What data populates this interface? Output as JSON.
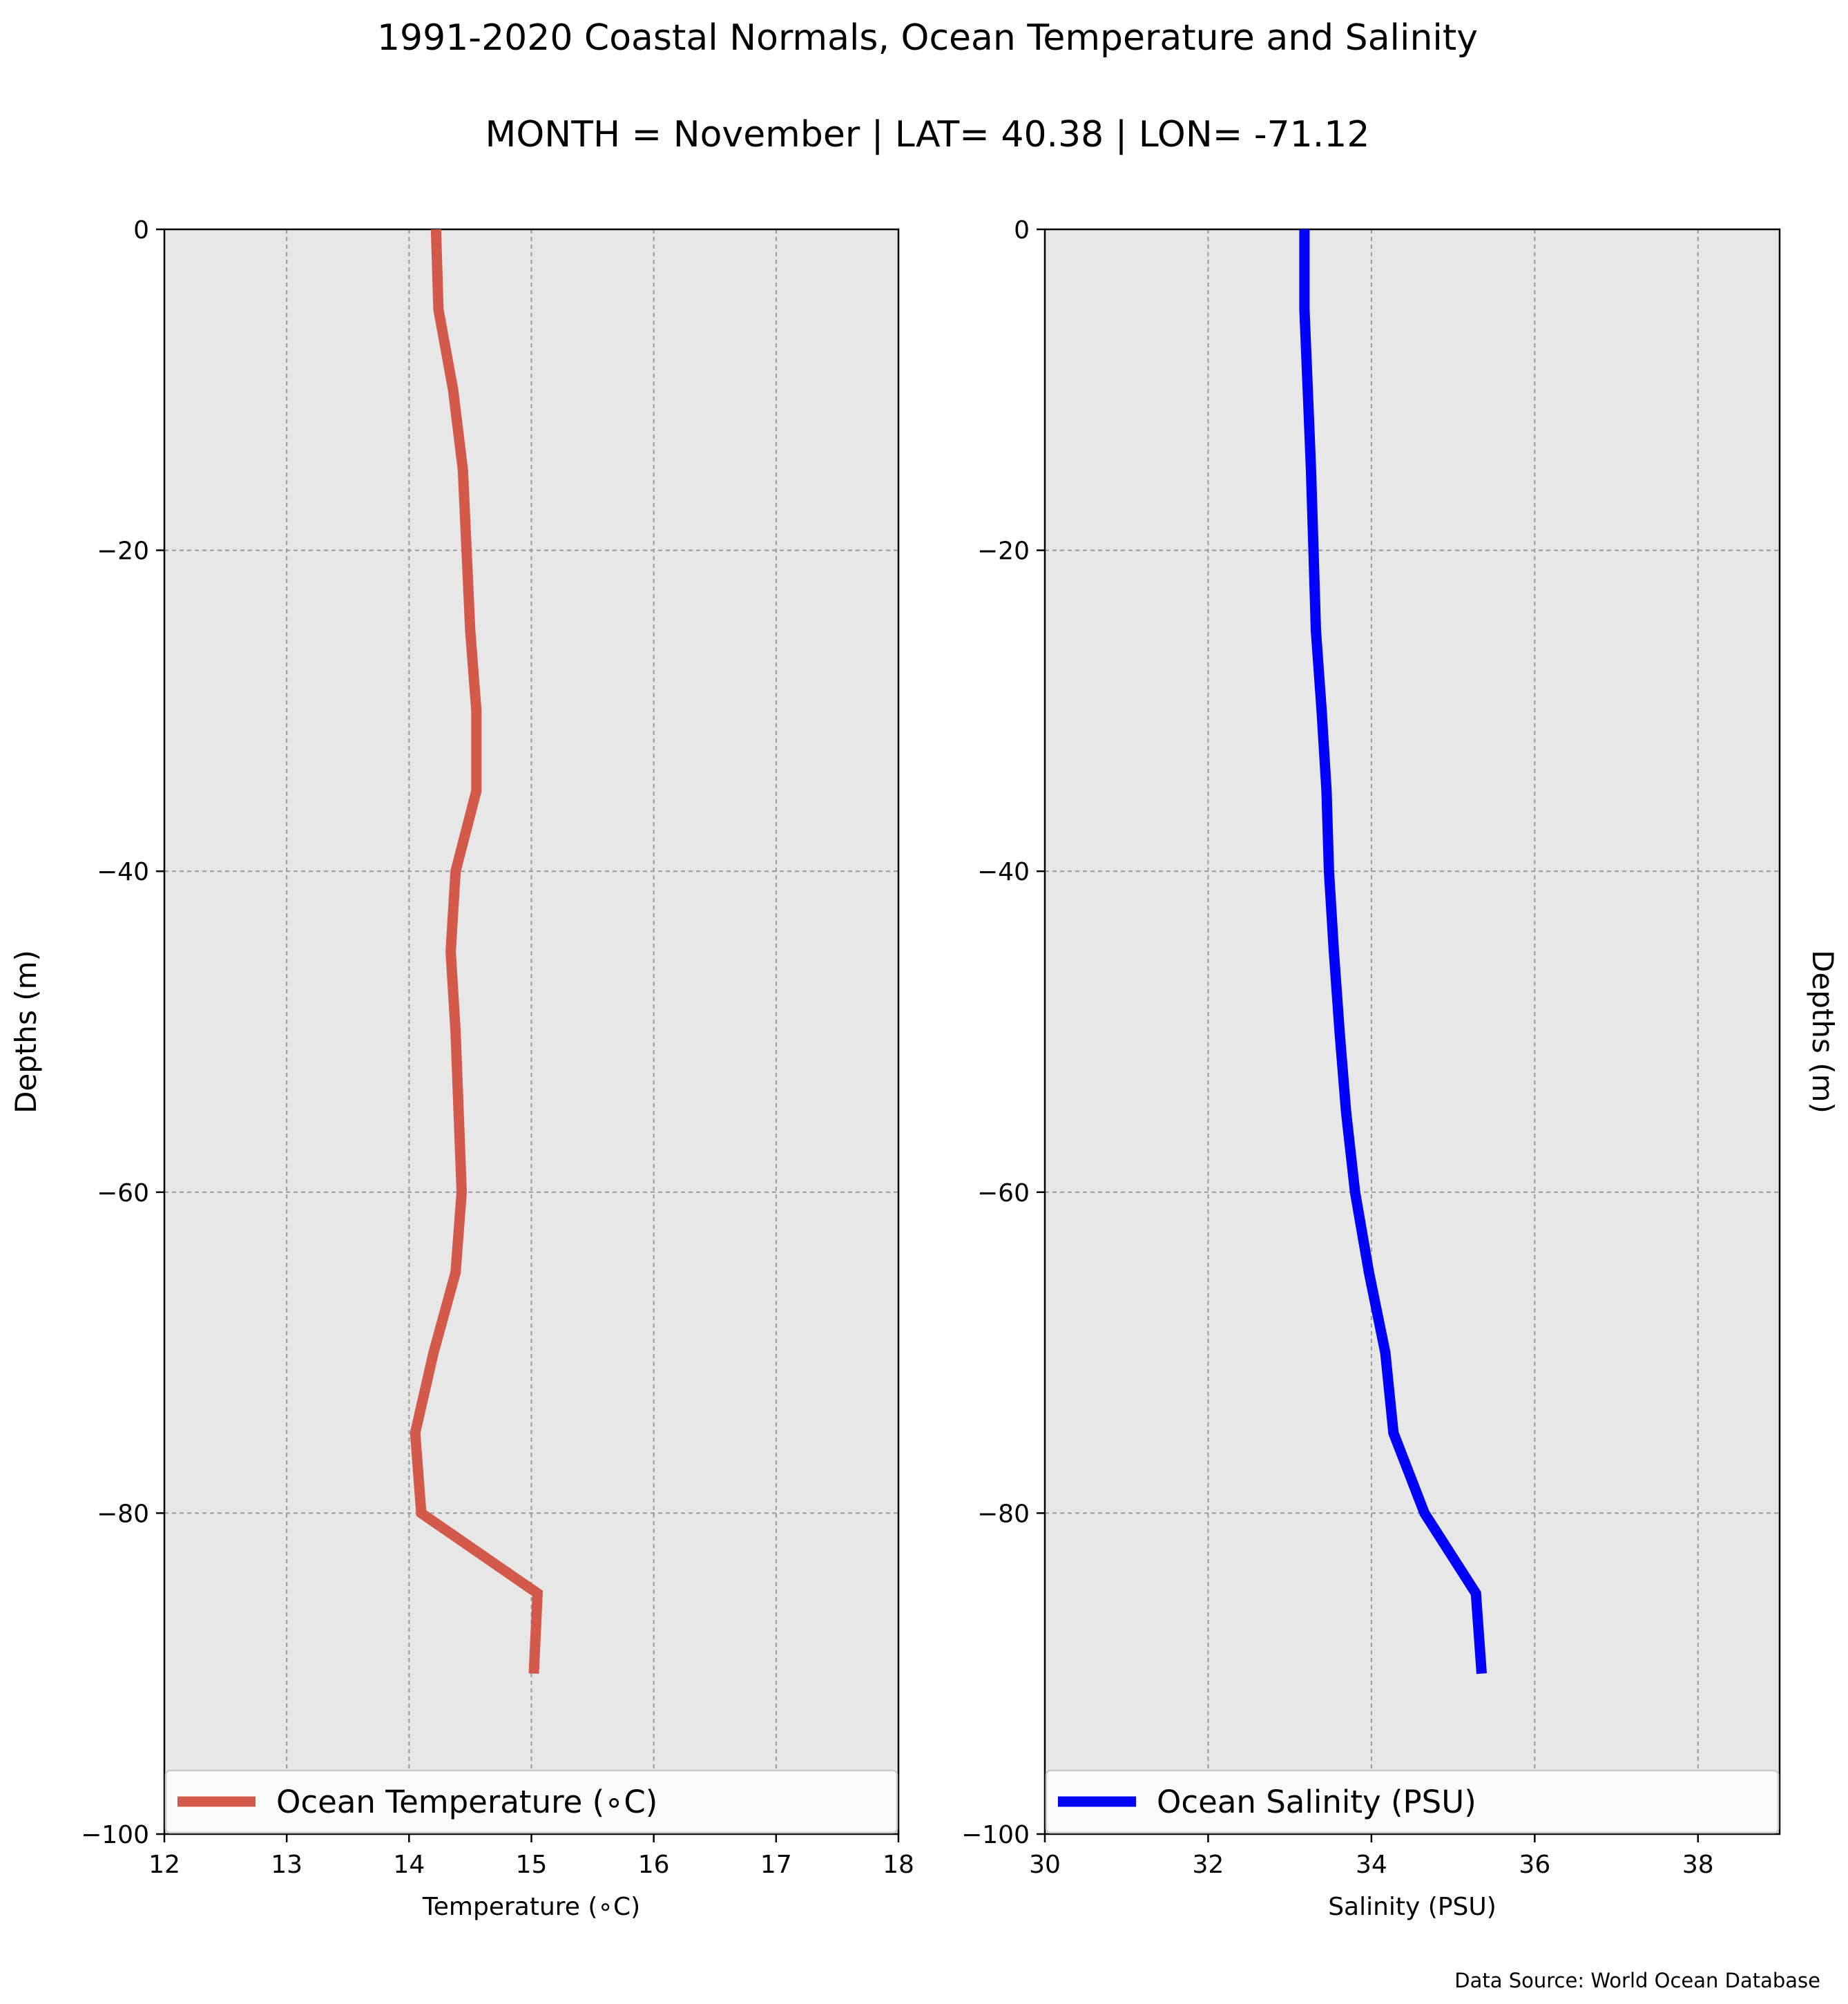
{
  "title_line1": "1991-2020 Coastal Normals, Ocean Temperature and Salinity",
  "title_line2": "MONTH = November | LAT= 40.38 | LON= -71.12",
  "source_note": "Data Source: World Ocean Database",
  "chart_data": [
    {
      "type": "line",
      "orientation": "vertical-profile",
      "xlabel": "Temperature ($^\\circ$C)",
      "xlabel_display": "Temperature (∘C)",
      "ylabel": "Depths (m)",
      "xlim": [
        12,
        18
      ],
      "ylim": [
        -100,
        0
      ],
      "xticks": [
        12,
        13,
        14,
        15,
        16,
        17,
        18
      ],
      "yticks": [
        0,
        -20,
        -40,
        -60,
        -80,
        -100
      ],
      "ytick_labels": [
        "0",
        "−20",
        "−40",
        "−60",
        "−80",
        "−100"
      ],
      "grid": true,
      "legend_location": "bottom",
      "series": [
        {
          "name": "Ocean Temperature (∘C)",
          "color": "#d35a4a",
          "x": [
            14.22,
            14.24,
            14.36,
            14.44,
            14.47,
            14.5,
            14.55,
            14.55,
            14.38,
            14.34,
            14.38,
            14.43,
            14.38,
            14.2,
            14.05,
            14.1,
            15.05,
            15.02
          ],
          "y": [
            0,
            -5,
            -10,
            -15,
            -20,
            -25,
            -30,
            -35,
            -40,
            -45,
            -50,
            -60,
            -65,
            -70,
            -75,
            -80,
            -85,
            -90
          ]
        }
      ],
      "background": "#e7e7e7"
    },
    {
      "type": "line",
      "orientation": "vertical-profile",
      "xlabel": "Salinity (PSU)",
      "ylabel": "Depths (m)",
      "xlim": [
        30,
        39
      ],
      "ylim": [
        -100,
        0
      ],
      "xticks": [
        30,
        32,
        34,
        36,
        38
      ],
      "yticks": [
        0,
        -20,
        -40,
        -60,
        -80,
        -100
      ],
      "ytick_labels": [
        "0",
        "−20",
        "−40",
        "−60",
        "−80",
        "−100"
      ],
      "grid": true,
      "legend_location": "bottom",
      "series": [
        {
          "name": "Ocean Salinity (PSU)",
          "color": "#0000ff",
          "x": [
            33.18,
            33.18,
            33.22,
            33.26,
            33.29,
            33.32,
            33.39,
            33.45,
            33.48,
            33.54,
            33.61,
            33.69,
            33.8,
            33.97,
            34.17,
            34.27,
            34.65,
            35.28,
            35.35
          ],
          "y": [
            0,
            -5,
            -10,
            -15,
            -20,
            -25,
            -30,
            -35,
            -40,
            -45,
            -50,
            -55,
            -60,
            -65,
            -70,
            -75,
            -80,
            -85,
            -90
          ]
        }
      ],
      "background": "#e7e7e7"
    }
  ]
}
